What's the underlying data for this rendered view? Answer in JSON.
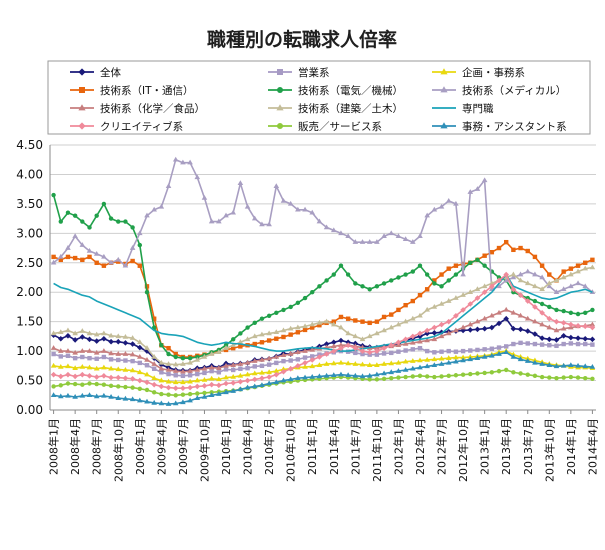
{
  "chart_data": {
    "type": "line",
    "title": "職種別の転職求人倍率",
    "xlabel": "",
    "ylabel": "",
    "ylim": [
      0,
      4.5
    ],
    "yticks": [
      "0.00",
      "0.50",
      "1.00",
      "1.50",
      "2.00",
      "2.50",
      "3.00",
      "3.50",
      "4.00",
      "4.50"
    ],
    "x_tick_labels": [
      "2008年1月",
      "2008年4月",
      "2008年7月",
      "2008年10月",
      "2009年1月",
      "2009年4月",
      "2009年7月",
      "2009年10月",
      "2010年1月",
      "2010年4月",
      "2010年7月",
      "2010年10月",
      "2011年1月",
      "2011年4月",
      "2011年7月",
      "2011年10月",
      "2012年1月",
      "2012年4月",
      "2012年7月",
      "2012年10月",
      "2013年1月",
      "2013年4月",
      "2013年7月",
      "2013年10月",
      "2014年1月",
      "2014年4月"
    ],
    "legend_position": "top",
    "grid": true,
    "series": [
      {
        "name": "全体",
        "color": "#1a1a7a",
        "marker": "diamond",
        "values": [
          1.27,
          1.21,
          1.26,
          1.19,
          1.24,
          1.2,
          1.17,
          1.21,
          1.16,
          1.16,
          1.14,
          1.12,
          1.06,
          1.0,
          0.88,
          0.77,
          0.72,
          0.68,
          0.67,
          0.67,
          0.71,
          0.72,
          0.75,
          0.72,
          0.79,
          0.77,
          0.79,
          0.8,
          0.85,
          0.86,
          0.87,
          0.91,
          0.96,
          0.95,
          0.99,
          1.02,
          1.04,
          1.08,
          1.12,
          1.15,
          1.18,
          1.15,
          1.13,
          1.09,
          1.07,
          1.06,
          1.08,
          1.1,
          1.13,
          1.18,
          1.22,
          1.25,
          1.3,
          1.31,
          1.32,
          1.33,
          1.34,
          1.35,
          1.36,
          1.37,
          1.38,
          1.4,
          1.47,
          1.55,
          1.38,
          1.37,
          1.34,
          1.29,
          1.22,
          1.2,
          1.19,
          1.26,
          1.23,
          1.22,
          1.21,
          1.2
        ]
      },
      {
        "name": "営業系",
        "color": "#a69ac4",
        "marker": "square",
        "values": [
          0.95,
          0.91,
          0.92,
          0.88,
          0.9,
          0.88,
          0.87,
          0.9,
          0.86,
          0.85,
          0.84,
          0.83,
          0.8,
          0.76,
          0.7,
          0.64,
          0.61,
          0.59,
          0.58,
          0.59,
          0.61,
          0.63,
          0.66,
          0.64,
          0.69,
          0.68,
          0.7,
          0.71,
          0.74,
          0.75,
          0.77,
          0.8,
          0.83,
          0.84,
          0.86,
          0.89,
          0.91,
          0.94,
          0.96,
          0.98,
          1.0,
          0.99,
          0.97,
          0.95,
          0.94,
          0.94,
          0.96,
          0.97,
          0.99,
          1.01,
          1.03,
          1.05,
          1.0,
          0.98,
          0.99,
          1.0,
          0.99,
          1.0,
          1.01,
          1.02,
          1.03,
          1.04,
          1.06,
          1.08,
          1.12,
          1.14,
          1.13,
          1.12,
          1.11,
          1.1,
          1.09,
          1.12,
          1.13,
          1.12,
          1.12,
          1.11
        ]
      },
      {
        "name": "企画・事務系",
        "color": "#e8d80f",
        "marker": "triangle",
        "values": [
          0.75,
          0.73,
          0.74,
          0.71,
          0.73,
          0.72,
          0.7,
          0.72,
          0.7,
          0.69,
          0.68,
          0.67,
          0.64,
          0.6,
          0.54,
          0.5,
          0.48,
          0.47,
          0.47,
          0.48,
          0.5,
          0.51,
          0.53,
          0.52,
          0.55,
          0.56,
          0.58,
          0.6,
          0.62,
          0.63,
          0.64,
          0.66,
          0.69,
          0.7,
          0.72,
          0.73,
          0.74,
          0.76,
          0.78,
          0.79,
          0.8,
          0.79,
          0.78,
          0.77,
          0.76,
          0.76,
          0.78,
          0.79,
          0.8,
          0.82,
          0.83,
          0.84,
          0.85,
          0.86,
          0.87,
          0.88,
          0.89,
          0.89,
          0.9,
          0.91,
          0.92,
          0.94,
          0.98,
          1.0,
          0.94,
          0.9,
          0.87,
          0.84,
          0.81,
          0.78,
          0.76,
          0.75,
          0.73,
          0.72,
          0.72,
          0.71
        ]
      },
      {
        "name": "技術系（IT・通信）",
        "color": "#e8650d",
        "marker": "square",
        "values": [
          2.6,
          2.55,
          2.6,
          2.58,
          2.55,
          2.6,
          2.5,
          2.45,
          2.5,
          2.52,
          2.48,
          2.53,
          2.45,
          2.1,
          1.55,
          1.1,
          1.05,
          0.95,
          0.9,
          0.9,
          0.92,
          0.94,
          0.97,
          0.99,
          1.02,
          1.05,
          1.08,
          1.1,
          1.12,
          1.15,
          1.18,
          1.21,
          1.24,
          1.28,
          1.32,
          1.36,
          1.4,
          1.44,
          1.48,
          1.5,
          1.58,
          1.55,
          1.52,
          1.5,
          1.48,
          1.5,
          1.58,
          1.62,
          1.7,
          1.78,
          1.85,
          1.95,
          2.05,
          2.2,
          2.3,
          2.4,
          2.45,
          2.48,
          2.5,
          2.55,
          2.62,
          2.68,
          2.75,
          2.85,
          2.72,
          2.75,
          2.7,
          2.6,
          2.45,
          2.3,
          2.2,
          2.35,
          2.4,
          2.45,
          2.5,
          2.55
        ]
      },
      {
        "name": "技術系（電気／機械）",
        "color": "#20a04a",
        "marker": "circle",
        "values": [
          3.65,
          3.2,
          3.35,
          3.3,
          3.2,
          3.1,
          3.3,
          3.5,
          3.25,
          3.2,
          3.2,
          3.1,
          2.8,
          2.0,
          1.4,
          1.1,
          0.95,
          0.9,
          0.88,
          0.88,
          0.9,
          0.93,
          0.98,
          1.02,
          1.1,
          1.2,
          1.3,
          1.4,
          1.48,
          1.55,
          1.6,
          1.65,
          1.7,
          1.75,
          1.82,
          1.9,
          2.0,
          2.1,
          2.2,
          2.3,
          2.45,
          2.3,
          2.15,
          2.1,
          2.05,
          2.1,
          2.15,
          2.2,
          2.25,
          2.3,
          2.35,
          2.45,
          2.3,
          2.15,
          2.1,
          2.2,
          2.3,
          2.4,
          2.5,
          2.55,
          2.45,
          2.35,
          2.25,
          2.2,
          2.0,
          1.95,
          1.9,
          1.85,
          1.8,
          1.75,
          1.7,
          1.68,
          1.65,
          1.63,
          1.65,
          1.7
        ]
      },
      {
        "name": "技術系（メディカル）",
        "color": "#a89ec2",
        "marker": "triangle",
        "values": [
          2.5,
          2.6,
          2.75,
          2.95,
          2.8,
          2.7,
          2.65,
          2.6,
          2.5,
          2.55,
          2.45,
          2.75,
          3.0,
          3.3,
          3.4,
          3.45,
          3.8,
          4.25,
          4.2,
          4.2,
          3.95,
          3.6,
          3.2,
          3.2,
          3.3,
          3.35,
          3.85,
          3.45,
          3.25,
          3.15,
          3.15,
          3.8,
          3.55,
          3.5,
          3.4,
          3.4,
          3.35,
          3.2,
          3.1,
          3.05,
          3.0,
          2.95,
          2.85,
          2.85,
          2.85,
          2.85,
          2.95,
          3.0,
          2.95,
          2.9,
          2.85,
          2.95,
          3.3,
          3.4,
          3.45,
          3.55,
          3.5,
          2.3,
          3.7,
          3.75,
          3.9,
          2.05,
          2.1,
          2.2,
          2.25,
          2.3,
          2.35,
          2.3,
          2.25,
          2.1,
          2.0,
          2.05,
          2.1,
          2.15,
          2.1,
          2.0
        ]
      },
      {
        "name": "技術系（化学／食品）",
        "color": "#c77e7e",
        "marker": "triangle",
        "values": [
          1.05,
          1.0,
          1.0,
          0.97,
          1.0,
          1.0,
          0.97,
          1.0,
          0.96,
          0.95,
          0.95,
          0.94,
          0.9,
          0.85,
          0.78,
          0.7,
          0.68,
          0.66,
          0.65,
          0.66,
          0.68,
          0.7,
          0.72,
          0.71,
          0.75,
          0.76,
          0.78,
          0.8,
          0.83,
          0.85,
          0.87,
          0.9,
          0.93,
          0.95,
          0.98,
          1.0,
          1.02,
          1.04,
          1.06,
          1.08,
          1.1,
          1.1,
          1.08,
          1.06,
          1.05,
          1.05,
          1.07,
          1.08,
          1.1,
          1.12,
          1.14,
          1.16,
          1.18,
          1.2,
          1.25,
          1.3,
          1.35,
          1.4,
          1.45,
          1.5,
          1.55,
          1.6,
          1.65,
          1.7,
          1.65,
          1.6,
          1.55,
          1.5,
          1.45,
          1.4,
          1.35,
          1.38,
          1.4,
          1.42,
          1.43,
          1.45
        ]
      },
      {
        "name": "技術系（建築／土木）",
        "color": "#c4bd99",
        "marker": "triangle",
        "values": [
          1.3,
          1.32,
          1.35,
          1.3,
          1.34,
          1.3,
          1.28,
          1.3,
          1.26,
          1.25,
          1.24,
          1.22,
          1.15,
          1.05,
          0.9,
          0.8,
          0.78,
          0.77,
          0.78,
          0.8,
          0.85,
          0.9,
          0.95,
          0.98,
          1.05,
          1.1,
          1.15,
          1.2,
          1.25,
          1.28,
          1.3,
          1.32,
          1.35,
          1.38,
          1.4,
          1.42,
          1.45,
          1.48,
          1.5,
          1.45,
          1.4,
          1.3,
          1.25,
          1.2,
          1.25,
          1.3,
          1.35,
          1.4,
          1.45,
          1.5,
          1.55,
          1.6,
          1.7,
          1.75,
          1.8,
          1.85,
          1.9,
          1.95,
          2.0,
          2.05,
          2.1,
          2.15,
          2.2,
          2.25,
          2.3,
          2.2,
          2.15,
          2.1,
          2.05,
          2.15,
          2.2,
          2.25,
          2.3,
          2.35,
          2.4,
          2.42
        ]
      },
      {
        "name": "専門職",
        "color": "#1aa3b8",
        "marker": "none",
        "values": [
          2.15,
          2.08,
          2.05,
          2.0,
          1.95,
          1.92,
          1.85,
          1.8,
          1.75,
          1.7,
          1.65,
          1.6,
          1.55,
          1.45,
          1.35,
          1.3,
          1.28,
          1.27,
          1.25,
          1.2,
          1.15,
          1.12,
          1.1,
          1.12,
          1.15,
          1.13,
          1.12,
          1.1,
          1.08,
          1.05,
          1.02,
          1.0,
          1.0,
          1.02,
          1.04,
          1.05,
          1.06,
          1.05,
          1.04,
          1.02,
          1.0,
          1.0,
          1.02,
          1.04,
          1.06,
          1.08,
          1.1,
          1.12,
          1.14,
          1.16,
          1.18,
          1.2,
          1.22,
          1.25,
          1.3,
          1.4,
          1.5,
          1.6,
          1.7,
          1.8,
          1.9,
          2.0,
          2.15,
          2.3,
          2.1,
          2.05,
          2.0,
          1.95,
          1.9,
          1.88,
          1.9,
          1.95,
          2.0,
          2.02,
          2.05,
          2.0
        ]
      },
      {
        "name": "クリエイティブ系",
        "color": "#f08a9a",
        "marker": "diamond",
        "values": [
          0.6,
          0.57,
          0.6,
          0.57,
          0.6,
          0.58,
          0.56,
          0.58,
          0.55,
          0.55,
          0.54,
          0.53,
          0.5,
          0.47,
          0.43,
          0.4,
          0.38,
          0.37,
          0.37,
          0.38,
          0.4,
          0.41,
          0.43,
          0.42,
          0.45,
          0.46,
          0.48,
          0.5,
          0.52,
          0.54,
          0.56,
          0.6,
          0.65,
          0.7,
          0.75,
          0.8,
          0.85,
          0.9,
          0.95,
          1.0,
          1.05,
          1.1,
          1.05,
          1.0,
          0.98,
          1.0,
          1.05,
          1.1,
          1.15,
          1.2,
          1.25,
          1.3,
          1.35,
          1.4,
          1.45,
          1.5,
          1.6,
          1.7,
          1.8,
          1.9,
          2.0,
          2.1,
          2.2,
          2.3,
          2.05,
          1.95,
          1.85,
          1.75,
          1.65,
          1.55,
          1.5,
          1.48,
          1.45,
          1.43,
          1.42,
          1.4
        ]
      },
      {
        "name": "販売／サービス系",
        "color": "#8fca3c",
        "marker": "circle",
        "values": [
          0.4,
          0.42,
          0.45,
          0.44,
          0.43,
          0.45,
          0.44,
          0.43,
          0.41,
          0.4,
          0.39,
          0.38,
          0.36,
          0.34,
          0.3,
          0.27,
          0.26,
          0.25,
          0.26,
          0.27,
          0.28,
          0.29,
          0.3,
          0.31,
          0.32,
          0.33,
          0.35,
          0.37,
          0.39,
          0.41,
          0.43,
          0.45,
          0.47,
          0.48,
          0.5,
          0.51,
          0.52,
          0.53,
          0.54,
          0.55,
          0.56,
          0.55,
          0.54,
          0.53,
          0.52,
          0.52,
          0.53,
          0.54,
          0.55,
          0.56,
          0.57,
          0.58,
          0.57,
          0.56,
          0.57,
          0.58,
          0.59,
          0.6,
          0.61,
          0.62,
          0.63,
          0.64,
          0.66,
          0.68,
          0.64,
          0.62,
          0.6,
          0.58,
          0.56,
          0.55,
          0.54,
          0.55,
          0.56,
          0.55,
          0.54,
          0.53
        ]
      },
      {
        "name": "事務・アシスタント系",
        "color": "#2f8fb8",
        "marker": "triangle",
        "values": [
          0.25,
          0.23,
          0.24,
          0.22,
          0.24,
          0.25,
          0.23,
          0.24,
          0.22,
          0.2,
          0.19,
          0.18,
          0.16,
          0.14,
          0.12,
          0.11,
          0.1,
          0.11,
          0.13,
          0.16,
          0.2,
          0.22,
          0.25,
          0.27,
          0.3,
          0.32,
          0.35,
          0.38,
          0.4,
          0.42,
          0.45,
          0.47,
          0.5,
          0.52,
          0.54,
          0.55,
          0.56,
          0.57,
          0.58,
          0.59,
          0.6,
          0.59,
          0.58,
          0.57,
          0.58,
          0.6,
          0.62,
          0.64,
          0.66,
          0.68,
          0.7,
          0.72,
          0.74,
          0.76,
          0.78,
          0.8,
          0.82,
          0.84,
          0.86,
          0.88,
          0.9,
          0.92,
          0.95,
          0.98,
          0.9,
          0.86,
          0.83,
          0.8,
          0.78,
          0.76,
          0.74,
          0.75,
          0.76,
          0.75,
          0.74,
          0.73
        ]
      }
    ]
  }
}
